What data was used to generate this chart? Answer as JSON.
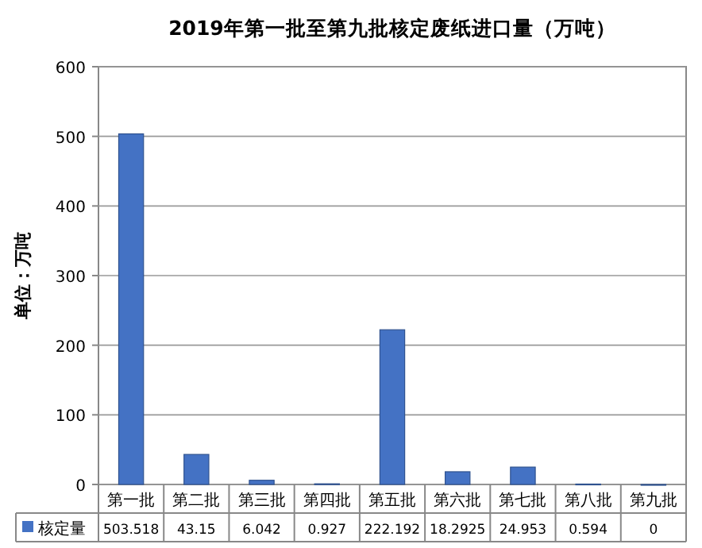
{
  "chart_data": {
    "type": "bar",
    "title": "2019年第一批至第九批核定废纸进口量（万吨）",
    "ylabel": "单位：万吨",
    "categories": [
      "第一批",
      "第二批",
      "第三批",
      "第四批",
      "第五批",
      "第六批",
      "第七批",
      "第八批",
      "第九批"
    ],
    "series": [
      {
        "name": "核定量",
        "color": "#4472c4",
        "values": [
          503.518,
          43.15,
          6.042,
          0.927,
          222.192,
          18.2925,
          24.953,
          0.594,
          0
        ]
      }
    ],
    "ylim": [
      0,
      600
    ],
    "yticks": [
      0,
      100,
      200,
      300,
      400,
      500,
      600
    ],
    "grid": "y",
    "legend": "bottom",
    "data_labels": true
  }
}
